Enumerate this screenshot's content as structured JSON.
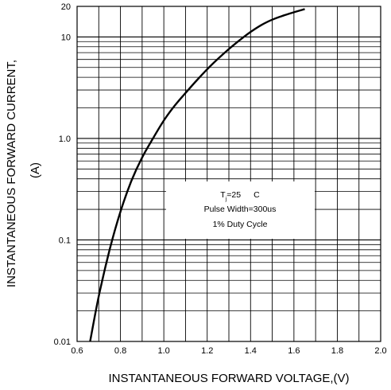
{
  "chart_data": {
    "type": "line",
    "title": "",
    "xlabel": "INSTANTANEOUS FORWARD VOLTAGE,(V)",
    "ylabel": "INSTANTANEOUS FORWARD CURRENT,",
    "ylabel_unit": "(A)",
    "xlim": [
      0.6,
      2.0
    ],
    "ylim": [
      0.01,
      20
    ],
    "yscale": "log",
    "grid": true,
    "x_ticks": [
      "0.6",
      "0.8",
      "1.0",
      "1.2",
      "1.4",
      "1.6",
      "1.8",
      "2.0"
    ],
    "y_ticks": [
      "0.01",
      "0.1",
      "1.0",
      "10",
      "20"
    ],
    "series": [
      {
        "x": [
          0.66,
          0.7,
          0.75,
          0.8,
          0.85,
          0.9,
          0.95,
          1.0,
          1.05,
          1.1,
          1.15,
          1.2,
          1.25,
          1.3,
          1.35,
          1.4,
          1.45,
          1.5,
          1.55,
          1.6,
          1.65
        ],
        "y": [
          0.01,
          0.028,
          0.08,
          0.19,
          0.38,
          0.65,
          1.0,
          1.5,
          2.1,
          2.8,
          3.7,
          4.8,
          6.1,
          7.6,
          9.3,
          11.2,
          13.1,
          14.8,
          16.2,
          17.5,
          18.8
        ]
      }
    ],
    "annotation": {
      "tj_label": "T",
      "tj_sub": "j",
      "tj_value": "=25",
      "tj_unit": "C",
      "line2": "Pulse Width=300us",
      "line3": "1% Duty Cycle"
    }
  }
}
